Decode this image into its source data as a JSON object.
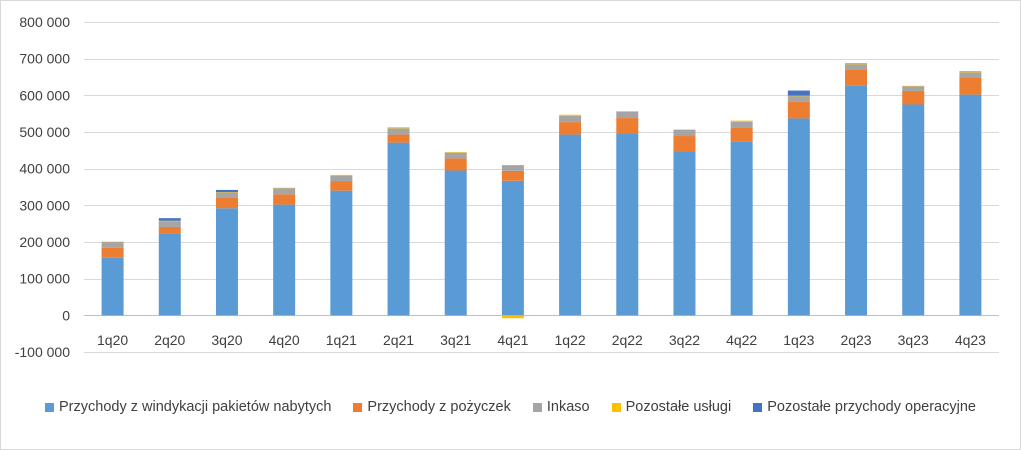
{
  "chart_data": {
    "type": "bar",
    "stacked": true,
    "title": "",
    "xlabel": "",
    "ylabel": "",
    "ylim": [
      -100000,
      800000
    ],
    "yticks": [
      -100000,
      0,
      100000,
      200000,
      300000,
      400000,
      500000,
      600000,
      700000,
      800000
    ],
    "ytick_labels": [
      "-100 000",
      "0",
      "100 000",
      "200 000",
      "300 000",
      "400 000",
      "500 000",
      "600 000",
      "700 000",
      "800 000"
    ],
    "grid": true,
    "legend_position": "bottom",
    "categories": [
      "1q20",
      "2q20",
      "3q20",
      "4q20",
      "1q21",
      "2q21",
      "3q21",
      "4q21",
      "1q22",
      "2q22",
      "3q22",
      "4q22",
      "1q23",
      "2q23",
      "3q23",
      "4q23"
    ],
    "series": [
      {
        "name": "Przychody z windykacji pakietów nabytych",
        "color": "#5b9bd5",
        "values": [
          157000,
          222000,
          292000,
          302000,
          340000,
          471000,
          395000,
          367000,
          493000,
          497000,
          447000,
          473000,
          537000,
          626000,
          575000,
          602000
        ]
      },
      {
        "name": "Przychody z pożyczek",
        "color": "#ed7d31",
        "values": [
          27000,
          19000,
          28000,
          28000,
          25000,
          22000,
          33000,
          27000,
          34000,
          41000,
          42000,
          38000,
          45000,
          45000,
          37000,
          47000
        ]
      },
      {
        "name": "Inkaso",
        "color": "#a5a5a5",
        "values": [
          16000,
          16000,
          15000,
          17000,
          16000,
          17000,
          16000,
          14000,
          17000,
          17000,
          17000,
          17000,
          16000,
          14000,
          13000,
          14000
        ]
      },
      {
        "name": "Pozostałe usługi",
        "color": "#ffc000",
        "values": [
          1000,
          1000,
          1000,
          1000,
          2000,
          3000,
          1000,
          -8000,
          3000,
          2000,
          1000,
          3000,
          1000,
          1000,
          1000,
          1000
        ]
      },
      {
        "name": "Pozostałe przychody operacyjne",
        "color": "#4472c4",
        "values": [
          0,
          7000,
          6000,
          0,
          0,
          0,
          0,
          1000,
          0,
          0,
          0,
          0,
          14000,
          1000,
          0,
          1000
        ]
      }
    ]
  }
}
